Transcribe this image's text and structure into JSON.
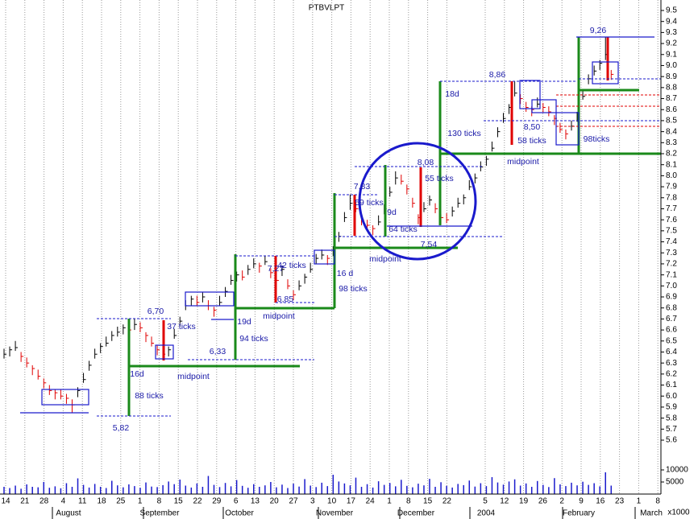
{
  "chart_data": {
    "type": "ohlc",
    "title": "PTBVLPT",
    "categories": [
      "14",
      "21",
      "28",
      "4",
      "11",
      "18",
      "25",
      "1",
      "8",
      "15",
      "22",
      "29",
      "6",
      "13",
      "20",
      "27",
      "3",
      "10",
      "17",
      "24",
      "1",
      "8",
      "15",
      "22",
      null,
      "5",
      "12",
      "19",
      "26",
      "2",
      "9",
      "16",
      "23",
      "1",
      "8"
    ],
    "months": [
      "August",
      "September",
      "October",
      "November",
      "December",
      "2004",
      "February",
      "March"
    ],
    "high": [
      6.43,
      6.45,
      6.5,
      6.4,
      6.35,
      6.28,
      6.24,
      6.16,
      6.1,
      6.06,
      6.06,
      6.02,
      5.97,
      6.08,
      6.21,
      6.32,
      6.43,
      6.48,
      6.54,
      6.59,
      6.63,
      6.65,
      6.66,
      6.7,
      6.67,
      6.58,
      6.54,
      6.46,
      6.43,
      6.45,
      6.61,
      6.72,
      6.87,
      6.91,
      6.91,
      6.94,
      6.87,
      6.81,
      6.91,
      6.99,
      7.1,
      7.13,
      7.14,
      7.19,
      7.25,
      7.21,
      7.27,
      7.16,
      7.1,
      7.18,
      7.06,
      6.96,
      7.05,
      7.11,
      7.21,
      7.29,
      7.33,
      7.28,
      7.36,
      7.49,
      7.67,
      7.83,
      7.76,
      7.64,
      7.6,
      7.55,
      7.64,
      7.74,
      7.9,
      8.04,
      8.01,
      7.92,
      7.8,
      7.65,
      7.76,
      7.82,
      7.75,
      7.65,
      7.66,
      7.72,
      7.8,
      7.83,
      7.96,
      8.02,
      8.13,
      8.18,
      8.31,
      8.44,
      8.57,
      8.65,
      8.86,
      8.74,
      8.67,
      8.63,
      8.71,
      8.66,
      8.63,
      8.55,
      8.48,
      8.42,
      8.5,
      8.58,
      8.78,
      8.92,
      9.0,
      9.05,
      9.26,
      8.96
    ],
    "low": [
      6.34,
      6.36,
      6.41,
      6.31,
      6.26,
      6.19,
      6.15,
      6.07,
      6.01,
      5.97,
      5.97,
      5.93,
      5.85,
      5.99,
      6.12,
      6.23,
      6.34,
      6.39,
      6.45,
      6.5,
      6.54,
      6.56,
      6.57,
      6.6,
      6.58,
      6.49,
      6.45,
      6.37,
      6.33,
      6.36,
      6.52,
      6.63,
      6.78,
      6.82,
      6.82,
      6.85,
      6.78,
      6.72,
      6.82,
      6.9,
      7.01,
      7.04,
      7.05,
      7.1,
      7.16,
      7.12,
      7.19,
      7.07,
      7.01,
      7.09,
      6.97,
      6.87,
      6.96,
      7.02,
      7.12,
      7.2,
      7.24,
      7.19,
      7.27,
      7.4,
      7.58,
      7.69,
      7.67,
      7.55,
      7.51,
      7.46,
      7.55,
      7.65,
      7.81,
      7.92,
      7.92,
      7.83,
      7.71,
      7.56,
      7.67,
      7.73,
      7.66,
      7.56,
      7.57,
      7.63,
      7.71,
      7.74,
      7.87,
      7.93,
      8.04,
      8.09,
      8.22,
      8.35,
      8.48,
      8.56,
      8.72,
      8.65,
      8.58,
      8.54,
      8.62,
      8.57,
      8.54,
      8.46,
      8.39,
      8.33,
      8.41,
      8.49,
      8.69,
      8.83,
      8.91,
      8.96,
      9.05,
      8.87
    ],
    "close": [
      6.38,
      6.42,
      6.44,
      6.36,
      6.3,
      6.25,
      6.18,
      6.12,
      6.05,
      6.03,
      6.0,
      5.98,
      5.92,
      6.05,
      6.15,
      6.28,
      6.38,
      6.45,
      6.48,
      6.55,
      6.58,
      6.62,
      6.6,
      6.65,
      6.62,
      6.55,
      6.48,
      6.42,
      6.38,
      6.42,
      6.55,
      6.68,
      6.82,
      6.88,
      6.85,
      6.9,
      6.82,
      6.78,
      6.85,
      6.95,
      7.05,
      7.1,
      7.08,
      7.15,
      7.2,
      7.18,
      7.22,
      7.12,
      7.05,
      7.15,
      7.0,
      6.92,
      7.0,
      7.08,
      7.15,
      7.25,
      7.28,
      7.25,
      7.3,
      7.45,
      7.62,
      7.75,
      7.7,
      7.6,
      7.55,
      7.52,
      7.58,
      7.7,
      7.85,
      7.98,
      7.95,
      7.88,
      7.75,
      7.62,
      7.7,
      7.78,
      7.7,
      7.62,
      7.6,
      7.68,
      7.75,
      7.8,
      7.9,
      7.98,
      8.08,
      8.15,
      8.25,
      8.4,
      8.52,
      8.62,
      8.75,
      8.7,
      8.62,
      8.6,
      8.65,
      8.62,
      8.58,
      8.52,
      8.42,
      8.38,
      8.45,
      8.55,
      8.72,
      8.88,
      8.95,
      9.02,
      9.1,
      8.92
    ],
    "volume": [
      3000,
      2500,
      3500,
      2200,
      4000,
      3000,
      2800,
      5000,
      2600,
      3200,
      2400,
      4500,
      3000,
      6500,
      3800,
      2700,
      4200,
      3000,
      2500,
      5500,
      3600,
      2800,
      4000,
      3300,
      2600,
      4800,
      3100,
      2900,
      3700,
      5200,
      4100,
      6000,
      3500,
      2700,
      4400,
      3000,
      7500,
      3800,
      2900,
      4600,
      3200,
      5800,
      3400,
      2600,
      4100,
      3000,
      3600,
      5000,
      2800,
      3900,
      2500,
      4300,
      3100,
      6200,
      3500,
      2900,
      4700,
      3300,
      8000,
      5200,
      4400,
      3600,
      6800,
      3000,
      4100,
      2700,
      5300,
      3800,
      4600,
      3200,
      5900,
      3400,
      2800,
      4300,
      3600,
      6300,
      3000,
      4900,
      3400,
      2700,
      4200,
      3700,
      5600,
      3100,
      4500,
      3300,
      7000,
      4800,
      3900,
      5200,
      6100,
      3500,
      4400,
      3000,
      5400,
      3800,
      2900,
      6600,
      4000,
      3300,
      4700,
      3600,
      5100,
      3800,
      4500,
      3200,
      9000,
      3500
    ],
    "up_color": "#000000",
    "down_color": "#e00000",
    "volume_color": "#1a1acc",
    "ylim": [
      5.6,
      9.5
    ],
    "yticks": [
      5.6,
      5.7,
      5.8,
      5.9,
      {
        "value": 6,
        "label": "6.0"
      },
      6.1,
      6.2,
      6.3,
      6.4,
      6.5,
      6.6,
      6.7,
      6.8,
      6.9,
      {
        "value": 7,
        "label": "7.0"
      },
      7.1,
      7.2,
      7.3,
      7.4,
      7.5,
      7.6,
      7.7,
      7.8,
      7.9,
      {
        "value": 8,
        "label": "8.0"
      },
      8.1,
      8.2,
      8.3,
      8.4,
      8.5,
      8.6,
      8.7,
      8.8,
      8.9,
      {
        "value": 9,
        "label": "9.0"
      },
      9.1,
      9.2,
      9.3,
      9.4,
      9.5
    ],
    "y2lim": [
      0,
      15000
    ],
    "y2ticks": [
      5000,
      10000
    ],
    "volume_unit": "x1000",
    "grid": true,
    "annotations": [
      "6,70",
      "5,82",
      "16d",
      "88 ticks",
      "midpoint",
      "37 ticks",
      "6,33",
      "19d",
      "94 ticks",
      "midpoint",
      "7,27",
      "42 ticks",
      "6,85",
      "16 d",
      "98 ticks",
      "midpoint",
      "7,83",
      "59 ticks",
      "9d",
      "64 ticks",
      "8,08",
      "55 ticks",
      "7,54",
      "18d",
      "130 ticks",
      "midpoint",
      "8,86",
      "58 ticks",
      "8,50",
      "9,26",
      "98ticks"
    ]
  }
}
